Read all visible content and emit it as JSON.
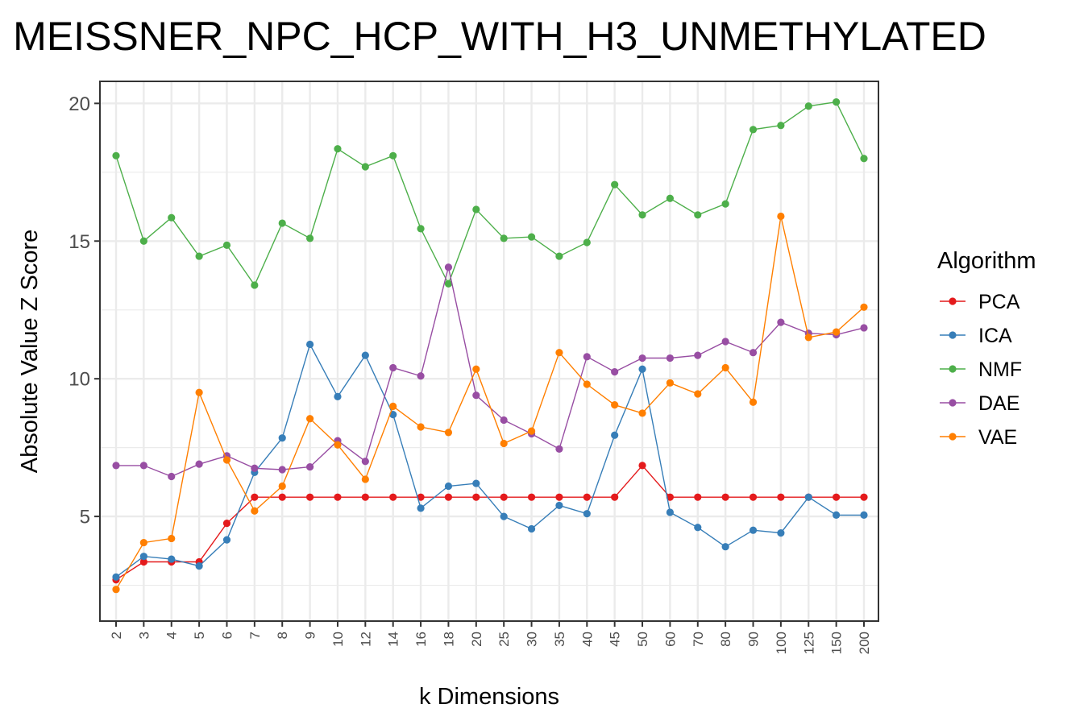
{
  "chart_data": {
    "type": "line",
    "title": "MEISSNER_NPC_HCP_WITH_H3_UNMETHYLATED",
    "xlabel": "k Dimensions",
    "ylabel": "Absolute Value Z Score",
    "ylim": [
      1.2,
      20.8
    ],
    "yticks": [
      5,
      10,
      15,
      20
    ],
    "grid": true,
    "legend": {
      "title": "Algorithm",
      "position": "right"
    },
    "categories": [
      "2",
      "3",
      "4",
      "5",
      "6",
      "7",
      "8",
      "9",
      "10",
      "12",
      "14",
      "16",
      "18",
      "20",
      "25",
      "30",
      "35",
      "40",
      "45",
      "50",
      "60",
      "70",
      "80",
      "90",
      "100",
      "125",
      "150",
      "200"
    ],
    "series": [
      {
        "name": "PCA",
        "color": "#e41a1c",
        "values": [
          2.7,
          3.35,
          3.35,
          3.35,
          4.75,
          5.7,
          5.7,
          5.7,
          5.7,
          5.7,
          5.7,
          5.7,
          5.7,
          5.7,
          5.7,
          5.7,
          5.7,
          5.7,
          5.7,
          6.85,
          5.7,
          5.7,
          5.7,
          5.7,
          5.7,
          5.7,
          5.7,
          5.7
        ]
      },
      {
        "name": "ICA",
        "color": "#377eb8",
        "values": [
          2.8,
          3.55,
          3.45,
          3.2,
          4.15,
          6.6,
          7.85,
          11.25,
          9.35,
          10.85,
          8.7,
          5.3,
          6.1,
          6.2,
          5.0,
          4.55,
          5.4,
          5.1,
          7.95,
          10.35,
          5.15,
          4.6,
          3.9,
          4.5,
          4.4,
          5.7,
          5.05,
          5.05
        ]
      },
      {
        "name": "NMF",
        "color": "#4daf4a",
        "values": [
          18.1,
          15.0,
          15.85,
          14.45,
          14.85,
          13.4,
          15.65,
          15.1,
          18.35,
          17.7,
          18.1,
          15.45,
          13.45,
          16.15,
          15.1,
          15.15,
          14.45,
          14.95,
          17.05,
          15.95,
          16.55,
          15.95,
          16.35,
          19.05,
          19.2,
          19.9,
          20.05,
          18.0
        ]
      },
      {
        "name": "DAE",
        "color": "#984ea3",
        "values": [
          6.85,
          6.85,
          6.45,
          6.9,
          7.2,
          6.75,
          6.7,
          6.8,
          7.75,
          7.0,
          10.4,
          10.1,
          14.05,
          9.4,
          8.5,
          8.0,
          7.45,
          10.8,
          10.25,
          10.75,
          10.75,
          10.85,
          11.35,
          10.95,
          12.05,
          11.65,
          11.6,
          11.85
        ]
      },
      {
        "name": "VAE",
        "color": "#ff7f00",
        "values": [
          2.35,
          4.05,
          4.2,
          9.5,
          7.05,
          5.2,
          6.1,
          8.55,
          7.6,
          6.35,
          9.0,
          8.25,
          8.05,
          10.35,
          7.65,
          8.1,
          10.95,
          9.8,
          9.05,
          8.75,
          9.85,
          9.45,
          10.4,
          9.15,
          15.9,
          11.5,
          11.7,
          12.6
        ]
      }
    ]
  }
}
